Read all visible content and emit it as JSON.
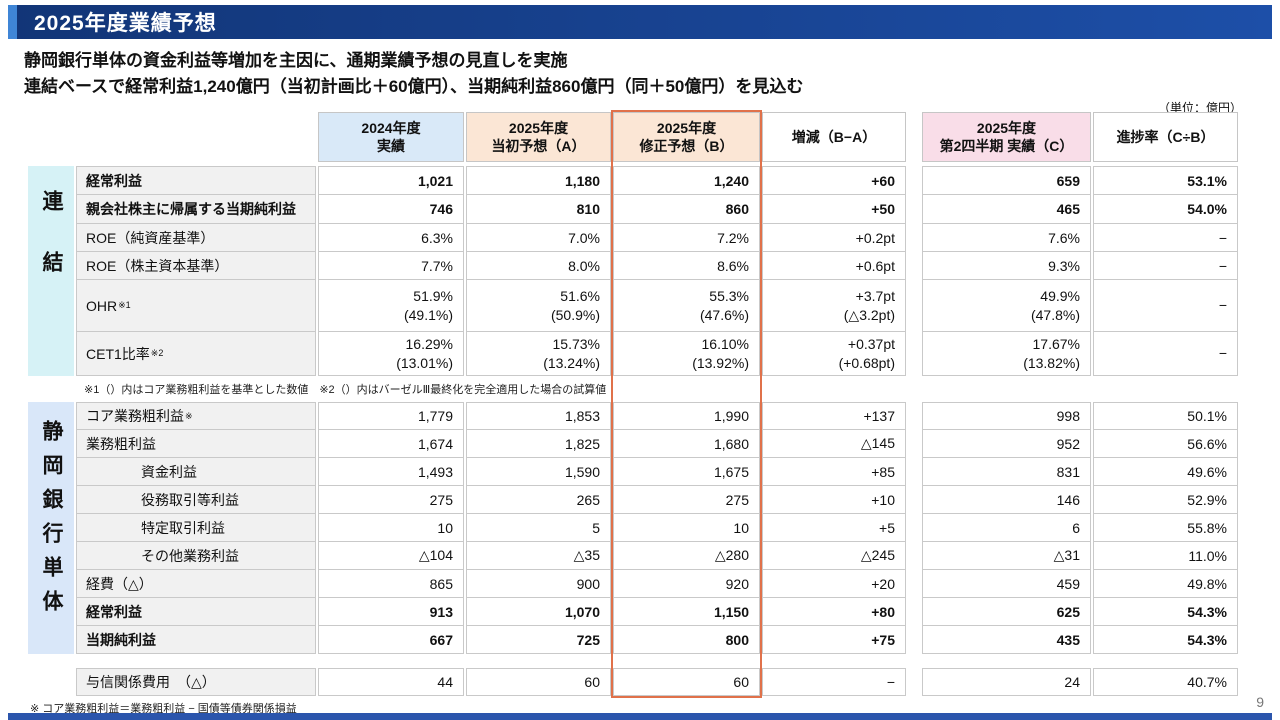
{
  "page": {
    "title": "2025年度業績予想",
    "subtitle_line1": "静岡銀行単体の資金利益等増加を主因に、通期業績予想の見直しを実施",
    "subtitle_line2": "連結ベースで経常利益1,240億円（当初計画比＋60億円）、当期純利益860億円（同＋50億円）を見込む",
    "unit_note": "（単位：億円）",
    "page_number": "9",
    "footnote_consolidated": "※1（）内はコア業務粗利益を基準とした数値　※2（）内はバーゼルⅢ最終化を完全適用した場合の試算値",
    "footnote_bank": "※ コア業務粗利益＝業務粗利益 − 国債等債券関係損益"
  },
  "colors": {
    "title_bar_navy": "#17418f",
    "title_accent_blue": "#3f85d6",
    "highlight_orange": "#e0714a",
    "header_blue": "#d9e9f8",
    "header_peach": "#fbe6d5",
    "header_pink": "#f9dde8",
    "group_cyan": "#d6f2f6",
    "group_blue": "#d9e7f9"
  },
  "table": {
    "headers": [
      "2024年度\n実績",
      "2025年度\n当初予想（A）",
      "2025年度\n修正予想（B）",
      "増減（B−A）",
      "2025年度\n第2四半期 実績（C）",
      "進捗率（C÷B）"
    ],
    "groups": {
      "consolidated": "連結",
      "bank": "静岡銀行単体"
    },
    "consolidated_rows": [
      {
        "label": "経常利益",
        "cells": [
          "1,021",
          "1,180",
          "1,240",
          "+60",
          "659",
          "53.1%"
        ]
      },
      {
        "label": "親会社株主に帰属する当期純利益",
        "cells": [
          "746",
          "810",
          "860",
          "+50",
          "465",
          "54.0%"
        ]
      },
      {
        "label": "ROE（純資産基準）",
        "cells": [
          "6.3%",
          "7.0%",
          "7.2%",
          "+0.2pt",
          "7.6%",
          "−"
        ]
      },
      {
        "label": "ROE（株主資本基準）",
        "cells": [
          "7.7%",
          "8.0%",
          "8.6%",
          "+0.6pt",
          "9.3%",
          "−"
        ]
      },
      {
        "label": "OHR",
        "label_sup": "※1",
        "cells": [
          "51.9%\n(49.1%)",
          "51.6%\n(50.9%)",
          "55.3%\n(47.6%)",
          "+3.7pt\n(△3.2pt)",
          "49.9%\n(47.8%)",
          "−"
        ]
      },
      {
        "label": "CET1比率",
        "label_sup": "※2",
        "cells": [
          "16.29%\n(13.01%)",
          "15.73%\n(13.24%)",
          "16.10%\n(13.92%)",
          "+0.37pt\n(+0.68pt)",
          "17.67%\n(13.82%)",
          "−"
        ]
      }
    ],
    "bank_rows": [
      {
        "label": "コア業務粗利益",
        "label_sup": "※",
        "cells": [
          "1,779",
          "1,853",
          "1,990",
          "+137",
          "998",
          "50.1%"
        ]
      },
      {
        "label": "業務粗利益",
        "cells": [
          "1,674",
          "1,825",
          "1,680",
          "△145",
          "952",
          "56.6%"
        ]
      },
      {
        "label": "資金利益",
        "cells": [
          "1,493",
          "1,590",
          "1,675",
          "+85",
          "831",
          "49.6%"
        ]
      },
      {
        "label": "役務取引等利益",
        "cells": [
          "275",
          "265",
          "275",
          "+10",
          "146",
          "52.9%"
        ]
      },
      {
        "label": "特定取引利益",
        "cells": [
          "10",
          "5",
          "10",
          "+5",
          "6",
          "55.8%"
        ]
      },
      {
        "label": "その他業務利益",
        "cells": [
          "△104",
          "△35",
          "△280",
          "△245",
          "△31",
          "11.0%"
        ]
      },
      {
        "label": "経費（△）",
        "cells": [
          "865",
          "900",
          "920",
          "+20",
          "459",
          "49.8%"
        ]
      },
      {
        "label": "経常利益",
        "cells": [
          "913",
          "1,070",
          "1,150",
          "+80",
          "625",
          "54.3%"
        ]
      },
      {
        "label": "当期純利益",
        "cells": [
          "667",
          "725",
          "800",
          "+75",
          "435",
          "54.3%"
        ]
      }
    ],
    "credit_row": {
      "label": "与信関係費用　（△）",
      "cells": [
        "44",
        "60",
        "60",
        "−",
        "24",
        "40.7%"
      ]
    }
  }
}
